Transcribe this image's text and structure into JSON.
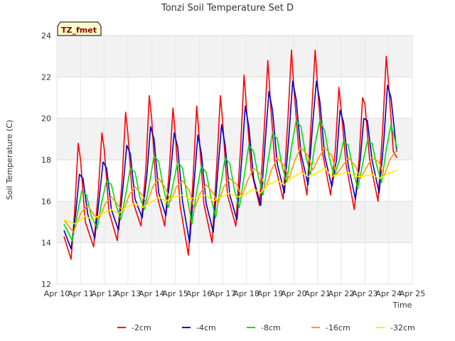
{
  "chart_data": {
    "type": "line",
    "title": "Tonzi Soil Temperature Set D",
    "xlabel": "Time",
    "ylabel": "Soil Temperature (C)",
    "badge": "TZ_fmet",
    "ylim": [
      12,
      24
    ],
    "xlim": [
      10,
      25
    ],
    "yticks": [
      12,
      14,
      16,
      18,
      20,
      22,
      24
    ],
    "xticks": [
      {
        "v": 10,
        "label": "Apr 10"
      },
      {
        "v": 11,
        "label": "Apr 11"
      },
      {
        "v": 12,
        "label": "Apr 12"
      },
      {
        "v": 13,
        "label": "Apr 13"
      },
      {
        "v": 14,
        "label": "Apr 14"
      },
      {
        "v": 15,
        "label": "Apr 15"
      },
      {
        "v": 16,
        "label": "Apr 16"
      },
      {
        "v": 17,
        "label": "Apr 17"
      },
      {
        "v": 18,
        "label": "Apr 18"
      },
      {
        "v": 19,
        "label": "Apr 19"
      },
      {
        "v": 20,
        "label": "Apr 20"
      },
      {
        "v": 21,
        "label": "Apr 21"
      },
      {
        "v": 22,
        "label": "Apr 22"
      },
      {
        "v": 23,
        "label": "Apr 23"
      },
      {
        "v": 24,
        "label": "Apr 24"
      },
      {
        "v": 25,
        "label": "Apr 25"
      }
    ],
    "grid": true,
    "legend_position": "bottom",
    "series": [
      {
        "name": "-2cm",
        "color": "#ff0000",
        "x": [
          10.3,
          10.6,
          10.75,
          10.9,
          11.0,
          11.2,
          11.55,
          11.75,
          11.9,
          12.0,
          12.2,
          12.55,
          12.75,
          12.9,
          13.0,
          13.2,
          13.55,
          13.75,
          13.9,
          14.0,
          14.2,
          14.55,
          14.75,
          14.9,
          15.0,
          15.2,
          15.55,
          15.75,
          15.9,
          16.0,
          16.2,
          16.55,
          16.75,
          16.9,
          17.0,
          17.2,
          17.55,
          17.75,
          17.9,
          18.0,
          18.2,
          18.55,
          18.75,
          18.9,
          19.0,
          19.2,
          19.55,
          19.75,
          19.9,
          20.0,
          20.2,
          20.55,
          20.75,
          20.9,
          21.0,
          21.2,
          21.55,
          21.75,
          21.9,
          22.0,
          22.2,
          22.55,
          22.75,
          22.9,
          23.0,
          23.2,
          23.55,
          23.75,
          23.9,
          24.0,
          24.2,
          24.35
        ],
        "y": [
          14.3,
          13.2,
          15.5,
          18.8,
          18.0,
          15.0,
          13.8,
          16.5,
          19.3,
          18.5,
          15.5,
          14.1,
          17.0,
          20.3,
          19.2,
          16.0,
          14.8,
          17.5,
          21.1,
          20.0,
          16.4,
          14.8,
          17.6,
          20.5,
          19.2,
          15.8,
          13.4,
          17.2,
          20.6,
          19.2,
          15.9,
          14.0,
          17.8,
          21.1,
          19.8,
          16.3,
          14.8,
          18.5,
          22.1,
          20.5,
          17.5,
          15.8,
          19.5,
          22.8,
          21.0,
          17.8,
          16.1,
          20.0,
          23.3,
          21.5,
          18.6,
          16.3,
          20.2,
          23.3,
          21.6,
          18.4,
          16.3,
          18.5,
          21.5,
          20.4,
          17.8,
          15.6,
          18.0,
          21.0,
          20.7,
          18.0,
          16.0,
          19.5,
          23.0,
          21.6,
          18.4,
          18.1
        ]
      },
      {
        "name": "-4cm",
        "color": "#0000cc",
        "x": [
          10.3,
          10.6,
          10.8,
          10.95,
          11.1,
          11.3,
          11.6,
          11.8,
          11.95,
          12.1,
          12.3,
          12.6,
          12.8,
          12.95,
          13.1,
          13.3,
          13.6,
          13.8,
          13.95,
          14.1,
          14.3,
          14.6,
          14.8,
          14.95,
          15.1,
          15.3,
          15.6,
          15.8,
          15.95,
          16.1,
          16.3,
          16.6,
          16.8,
          16.95,
          17.1,
          17.3,
          17.6,
          17.8,
          17.95,
          18.1,
          18.3,
          18.6,
          18.8,
          18.95,
          19.1,
          19.3,
          19.6,
          19.8,
          19.95,
          20.1,
          20.3,
          20.6,
          20.8,
          20.95,
          21.1,
          21.3,
          21.6,
          21.8,
          21.95,
          22.1,
          22.3,
          22.6,
          22.8,
          22.95,
          23.1,
          23.3,
          23.6,
          23.8,
          23.95,
          24.1,
          24.3,
          24.35
        ],
        "y": [
          14.6,
          13.7,
          15.5,
          17.3,
          17.1,
          15.4,
          14.2,
          16.3,
          17.9,
          17.6,
          15.6,
          14.6,
          16.8,
          18.7,
          18.3,
          16.1,
          15.2,
          17.3,
          19.6,
          19.0,
          16.4,
          15.3,
          17.4,
          19.3,
          18.6,
          16.0,
          14.0,
          17.0,
          19.2,
          18.3,
          15.9,
          14.5,
          17.6,
          19.7,
          18.7,
          16.3,
          15.1,
          18.0,
          20.6,
          19.6,
          17.1,
          15.8,
          19.0,
          21.3,
          20.4,
          17.8,
          16.4,
          19.3,
          21.8,
          20.9,
          18.3,
          16.8,
          19.8,
          21.8,
          20.8,
          18.2,
          16.7,
          18.0,
          20.4,
          19.8,
          17.7,
          16.1,
          18.0,
          20.0,
          19.9,
          18.0,
          16.4,
          19.0,
          21.6,
          21.0,
          18.8,
          18.4
        ]
      },
      {
        "name": "-8cm",
        "color": "#00dd00",
        "x": [
          10.3,
          10.65,
          10.85,
          11.05,
          11.25,
          11.45,
          11.7,
          11.9,
          12.1,
          12.3,
          12.5,
          12.7,
          12.9,
          13.1,
          13.3,
          13.5,
          13.7,
          13.9,
          14.1,
          14.3,
          14.5,
          14.7,
          14.9,
          15.1,
          15.3,
          15.5,
          15.7,
          15.9,
          16.1,
          16.3,
          16.5,
          16.7,
          16.9,
          17.1,
          17.3,
          17.5,
          17.7,
          17.9,
          18.1,
          18.3,
          18.5,
          18.7,
          18.9,
          19.1,
          19.3,
          19.5,
          19.7,
          19.9,
          20.1,
          20.3,
          20.5,
          20.7,
          20.9,
          21.1,
          21.3,
          21.5,
          21.7,
          21.9,
          22.1,
          22.3,
          22.5,
          22.7,
          22.9,
          23.1,
          23.3,
          23.5,
          23.7,
          23.9,
          24.1,
          24.35
        ],
        "y": [
          14.9,
          14.1,
          15.3,
          16.5,
          16.3,
          15.3,
          14.7,
          16.0,
          17.0,
          16.8,
          15.8,
          15.1,
          16.3,
          17.6,
          17.4,
          16.2,
          15.6,
          16.8,
          18.2,
          17.9,
          16.6,
          15.7,
          16.8,
          17.9,
          17.6,
          16.2,
          14.9,
          16.5,
          17.7,
          17.4,
          16.2,
          15.2,
          16.7,
          18.1,
          17.8,
          16.5,
          15.7,
          17.2,
          18.7,
          18.4,
          17.2,
          16.3,
          17.9,
          19.3,
          19.0,
          17.7,
          16.9,
          18.6,
          19.9,
          19.6,
          18.2,
          17.3,
          18.8,
          19.9,
          19.4,
          18.1,
          17.2,
          17.9,
          18.9,
          18.7,
          17.5,
          16.6,
          17.8,
          18.9,
          18.8,
          17.7,
          16.9,
          18.5,
          19.7,
          18.6
        ]
      },
      {
        "name": "-16cm",
        "color": "#ff9900",
        "x": [
          10.3,
          10.7,
          11.0,
          11.3,
          11.6,
          11.8,
          12.05,
          12.3,
          12.6,
          12.8,
          13.05,
          13.3,
          13.6,
          13.8,
          14.05,
          14.3,
          14.6,
          14.8,
          15.05,
          15.3,
          15.6,
          15.8,
          16.05,
          16.3,
          16.6,
          16.8,
          17.05,
          17.3,
          17.6,
          17.8,
          18.05,
          18.3,
          18.6,
          18.8,
          19.05,
          19.3,
          19.6,
          19.8,
          20.05,
          20.3,
          20.6,
          20.8,
          21.05,
          21.3,
          21.6,
          21.8,
          22.05,
          22.3,
          22.6,
          22.8,
          23.05,
          23.3,
          23.6,
          23.8,
          24.05,
          24.35
        ],
        "y": [
          15.1,
          14.5,
          15.4,
          15.8,
          15.3,
          15.2,
          15.9,
          16.2,
          15.8,
          15.5,
          16.3,
          16.7,
          16.3,
          15.9,
          16.7,
          17.1,
          16.6,
          16.0,
          16.7,
          17.0,
          16.5,
          15.6,
          16.4,
          16.8,
          16.4,
          15.9,
          16.7,
          17.1,
          16.8,
          16.2,
          17.0,
          17.6,
          17.3,
          16.6,
          17.5,
          18.1,
          17.7,
          17.1,
          18.0,
          18.6,
          18.2,
          17.5,
          18.1,
          18.6,
          18.2,
          17.3,
          17.7,
          18.1,
          17.7,
          17.1,
          17.6,
          18.1,
          17.9,
          17.2,
          18.0,
          18.5
        ]
      },
      {
        "name": "-32cm",
        "color": "#ffee00",
        "x": [
          10.3,
          10.8,
          11.2,
          11.5,
          11.9,
          12.3,
          12.6,
          12.9,
          13.3,
          13.6,
          13.9,
          14.3,
          14.6,
          14.9,
          15.3,
          15.6,
          15.9,
          16.3,
          16.6,
          16.9,
          17.3,
          17.6,
          17.9,
          18.3,
          18.6,
          18.9,
          19.3,
          19.6,
          19.9,
          20.3,
          20.6,
          20.9,
          21.3,
          21.6,
          21.9,
          22.3,
          22.6,
          22.9,
          23.3,
          23.6,
          23.9,
          24.35
        ],
        "y": [
          15.1,
          14.9,
          15.3,
          15.1,
          15.4,
          15.6,
          15.4,
          15.7,
          15.9,
          15.7,
          15.9,
          16.2,
          16.0,
          16.2,
          16.3,
          16.1,
          16.2,
          16.3,
          16.0,
          16.2,
          16.4,
          16.2,
          16.3,
          16.6,
          16.4,
          16.8,
          17.0,
          16.8,
          17.1,
          17.4,
          17.2,
          17.3,
          17.6,
          17.2,
          17.3,
          17.4,
          17.2,
          17.2,
          17.3,
          17.1,
          17.3,
          17.5
        ]
      }
    ]
  }
}
